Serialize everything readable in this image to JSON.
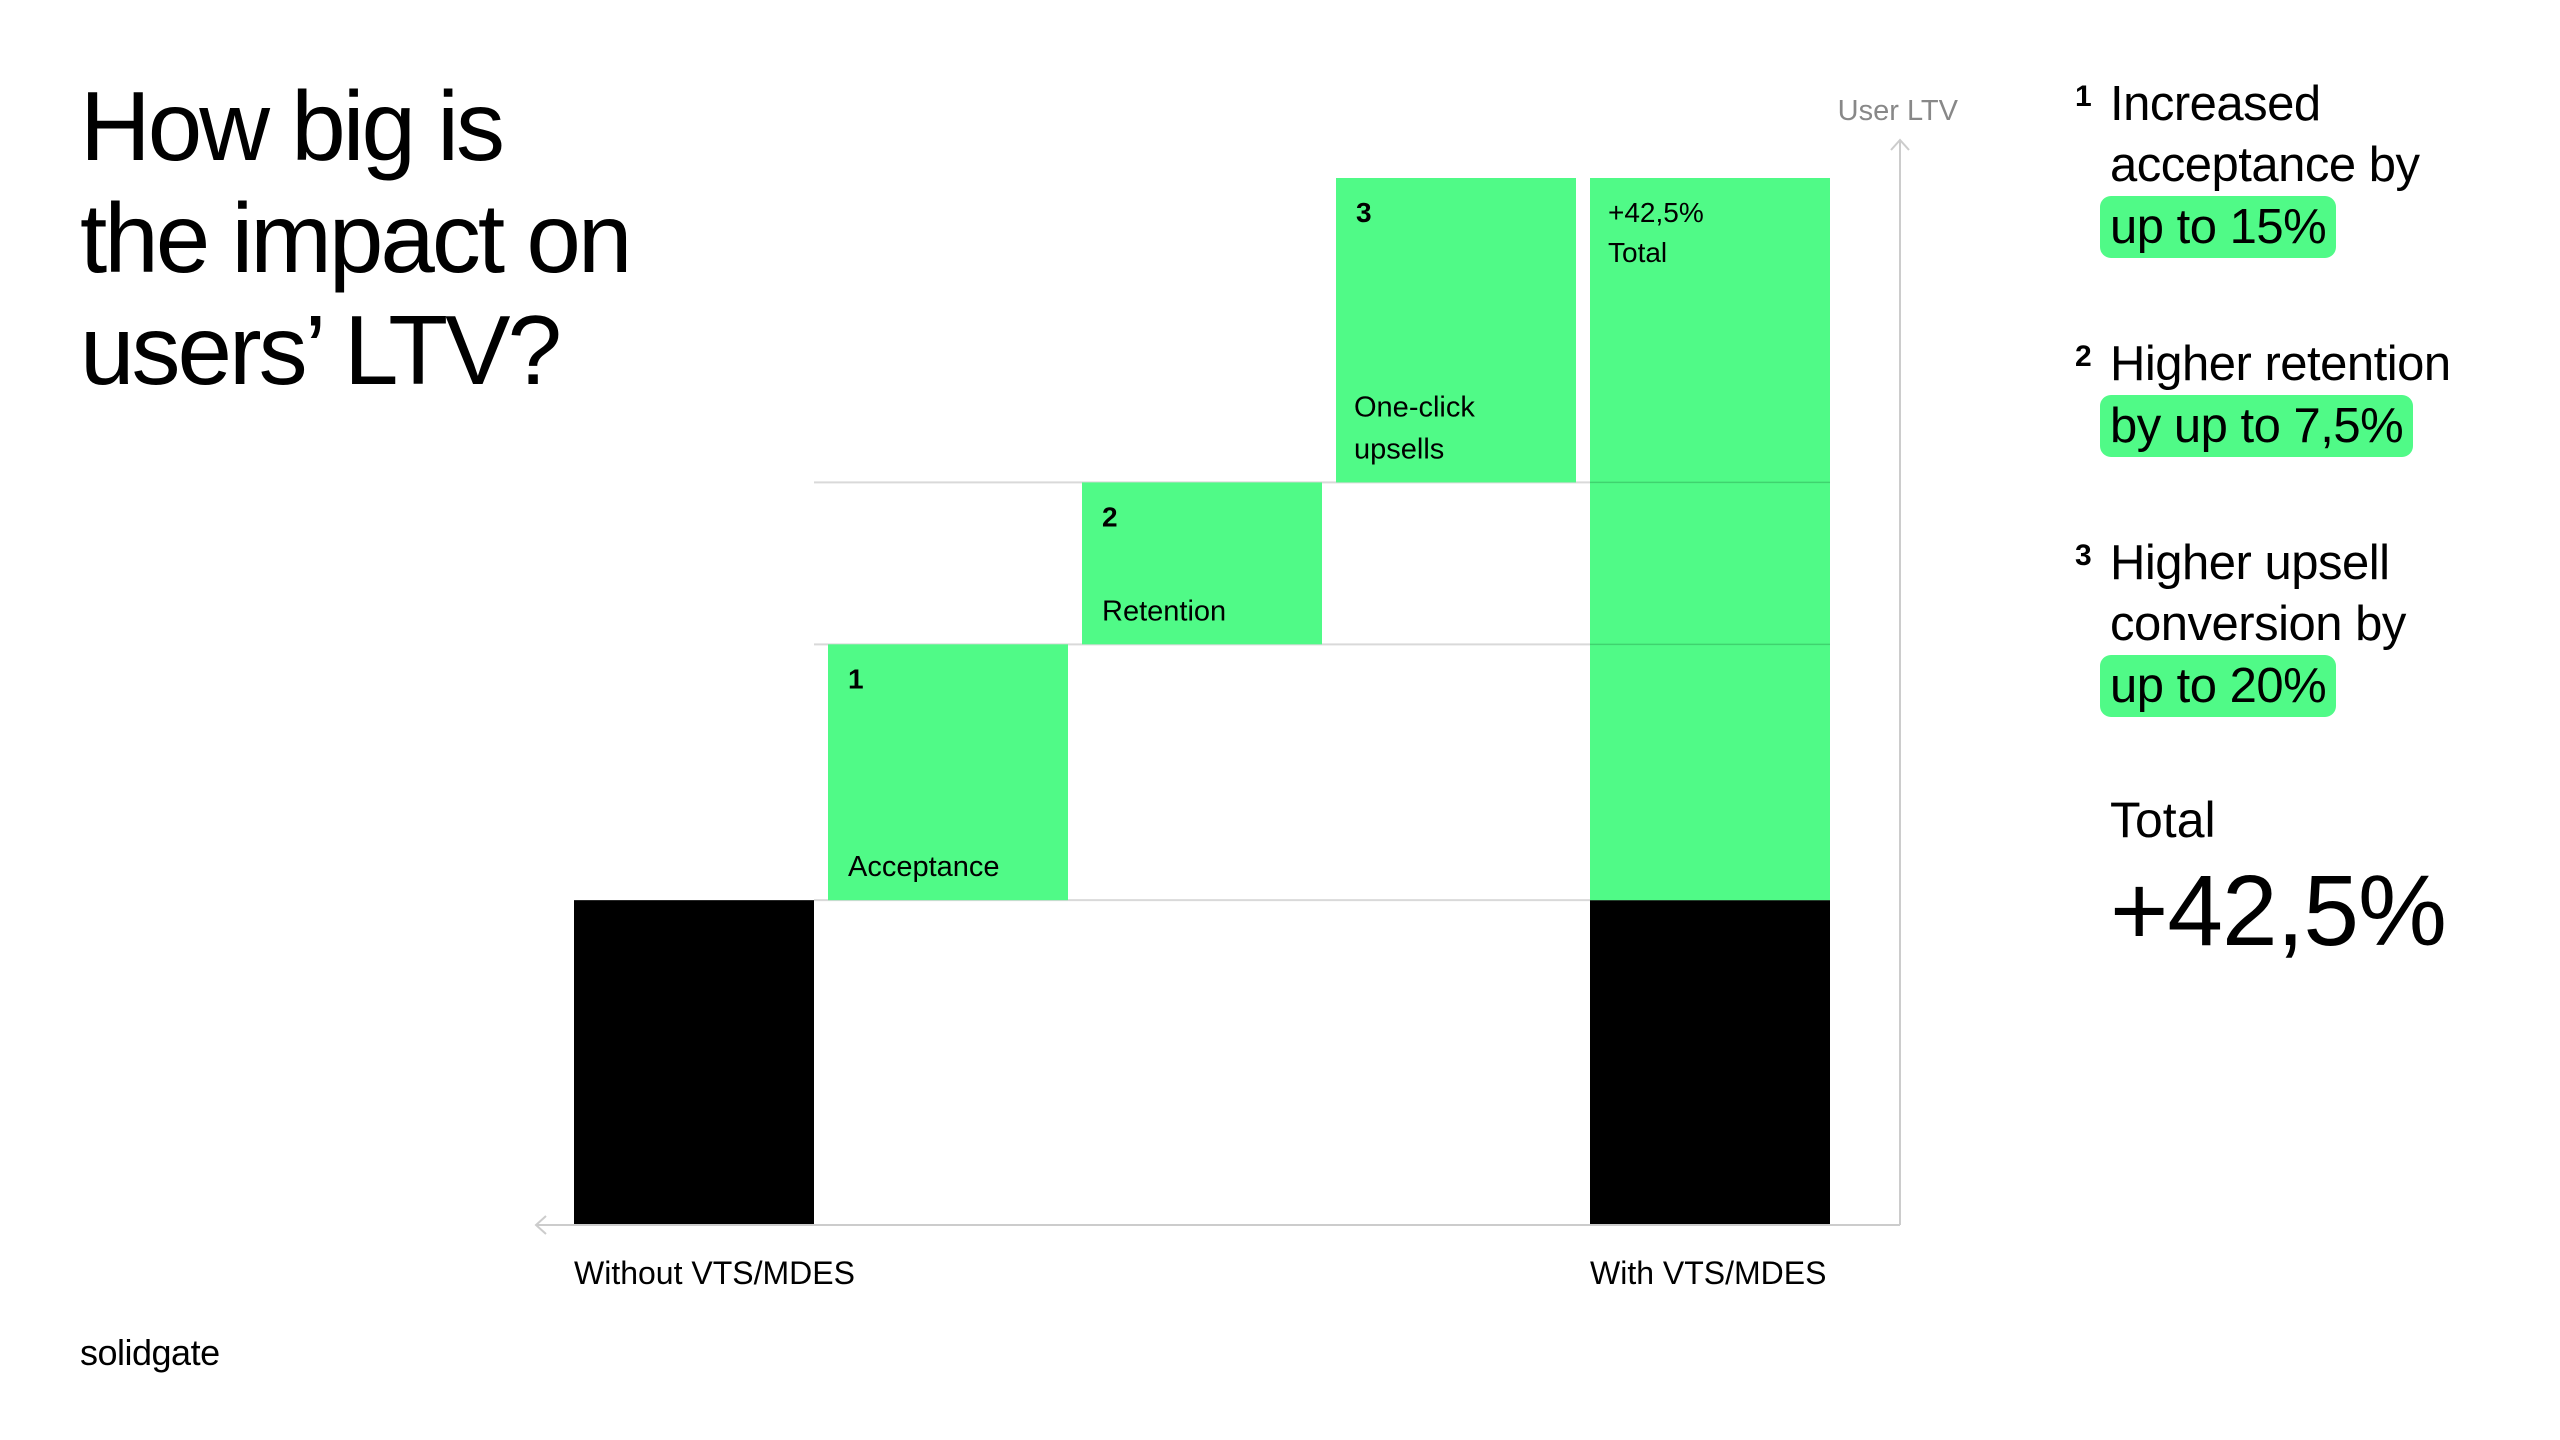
{
  "title": {
    "line1": "How big is",
    "line2": "the impact on",
    "line3": "users’ LTV?"
  },
  "logo": "solidgate",
  "colors": {
    "accent": "#50fa87",
    "base": "#000000",
    "axis": "#cccccc",
    "muted": "#888888"
  },
  "notes": [
    {
      "num": "1",
      "text": "Increased acceptance by",
      "highlight": "up to 15%"
    },
    {
      "num": "2",
      "text": "Higher retention",
      "highlight": "by up to 7,5%"
    },
    {
      "num": "3",
      "text": "Higher upsell conversion by",
      "highlight": "up to 20%"
    }
  ],
  "total": {
    "label": "Total",
    "value": "+42,5%"
  },
  "chart_data": {
    "type": "bar",
    "subtype": "waterfall",
    "ylabel": "User LTV",
    "xlabel": "",
    "grid": false,
    "legend": "none",
    "categories": [
      "Without VTS/MDES",
      "Acceptance",
      "Retention",
      "One-click upsells",
      "With VTS/MDES"
    ],
    "axis_labels": [
      "Without VTS/MDES",
      "With VTS/MDES"
    ],
    "bars": [
      {
        "category": "Without VTS/MDES",
        "start": 0,
        "end": 100,
        "kind": "base",
        "num": "",
        "label": ""
      },
      {
        "category": "Acceptance",
        "start": 100,
        "end": 179,
        "kind": "increase",
        "num": "1",
        "label": "Acceptance"
      },
      {
        "category": "Retention",
        "start": 179,
        "end": 229,
        "kind": "increase",
        "num": "2",
        "label": "Retention"
      },
      {
        "category": "One-click upsells",
        "start": 229,
        "end": 323,
        "kind": "increase",
        "num": "3",
        "label": "One-click upsells"
      }
    ],
    "final": {
      "category": "With VTS/MDES",
      "base": 100,
      "levels": [
        179,
        229,
        323
      ],
      "top": 323,
      "num": "+42,5%",
      "label": "Total"
    },
    "ylim": [
      0,
      323
    ]
  }
}
